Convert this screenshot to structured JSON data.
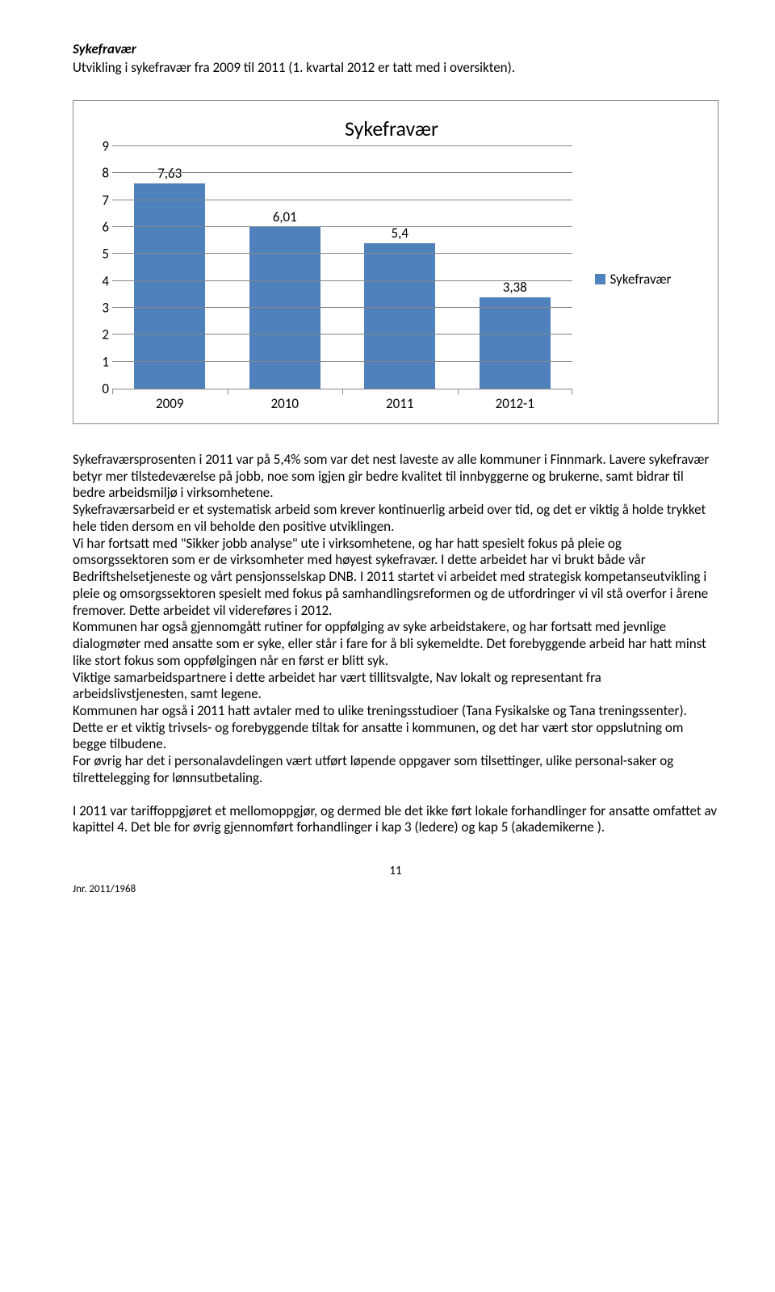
{
  "heading": "Sykefravær",
  "intro": "Utvikling i sykefravær fra 2009 til 2011 (1. kvartal 2012 er tatt med i oversikten).",
  "chart": {
    "type": "bar",
    "title": "Sykefravær",
    "categories": [
      "2009",
      "2010",
      "2011",
      "2012-1"
    ],
    "values": [
      7.63,
      6.01,
      5.4,
      3.38
    ],
    "value_labels": [
      "7,63",
      "6,01",
      "5,4",
      "3,38"
    ],
    "bar_color": "#4f81bd",
    "ymin": 0,
    "ymax": 9,
    "ytick_step": 1,
    "yticks": [
      "0",
      "1",
      "2",
      "3",
      "4",
      "5",
      "6",
      "7",
      "8",
      "9"
    ],
    "grid_color": "#868686",
    "background_color": "#ffffff",
    "title_fontsize": 26,
    "label_fontsize": 17,
    "tick_fontsize": 17,
    "bar_width": 0.62,
    "legend": {
      "label": "Sykefravær",
      "swatch_color": "#4f81bd"
    }
  },
  "body": {
    "p1": "Sykefraværsprosenten i 2011 var på 5,4% som var det nest laveste av alle kommuner i Finnmark. Lavere sykefravær betyr mer tilstedeværelse på jobb, noe som igjen gir bedre kvalitet til innbyggerne og brukerne, samt bidrar til bedre arbeidsmiljø i virksomhetene.",
    "p2": "Sykefraværsarbeid er et systematisk arbeid som krever kontinuerlig arbeid over tid, og det er viktig å holde trykket hele tiden dersom en vil beholde den positive utviklingen.",
    "p3": "Vi har fortsatt med \"Sikker jobb analyse\" ute i virksomhetene, og har hatt spesielt fokus på pleie og omsorgssektoren som er de virksomheter med høyest sykefravær. I dette arbeidet har vi brukt både vår Bedriftshelsetjeneste og vårt pensjonsselskap DNB. I 2011 startet vi arbeidet med strategisk kompetanseutvikling i pleie og omsorgssektoren spesielt med fokus på samhandlingsreformen og de utfordringer vi vil stå overfor i årene fremover.  Dette arbeidet vil videreføres i 2012.",
    "p4": "Kommunen har også gjennomgått rutiner for oppfølging av syke arbeidstakere, og har fortsatt med jevnlige dialogmøter med ansatte som er syke, eller står i fare for å bli sykemeldte. Det forebyggende arbeid har hatt minst like stort fokus som oppfølgingen når en først er blitt syk.",
    "p5": "Viktige samarbeidspartnere i dette arbeidet har vært tillitsvalgte, Nav lokalt og representant fra arbeidslivstjenesten, samt legene.",
    "p6": "Kommunen har også i 2011 hatt avtaler med to ulike treningsstudioer (Tana Fysikalske og Tana treningssenter). Dette er et viktig trivsels- og forebyggende tiltak for ansatte i kommunen, og det har vært stor oppslutning om begge tilbudene.",
    "p7": "For øvrig har det i personalavdelingen vært utført løpende oppgaver som tilsettinger, ulike personal-saker og tilrettelegging for lønnsutbetaling.",
    "p8": "I 2011 var tariffoppgjøret et mellomoppgjør, og dermed ble det ikke ført lokale forhandlinger for ansatte omfattet av kapittel 4. Det ble for øvrig gjennomført forhandlinger i kap 3 (ledere) og kap 5 (akademikerne ).",
    "page_number": "11",
    "footer": "Jnr. 2011/1968"
  }
}
